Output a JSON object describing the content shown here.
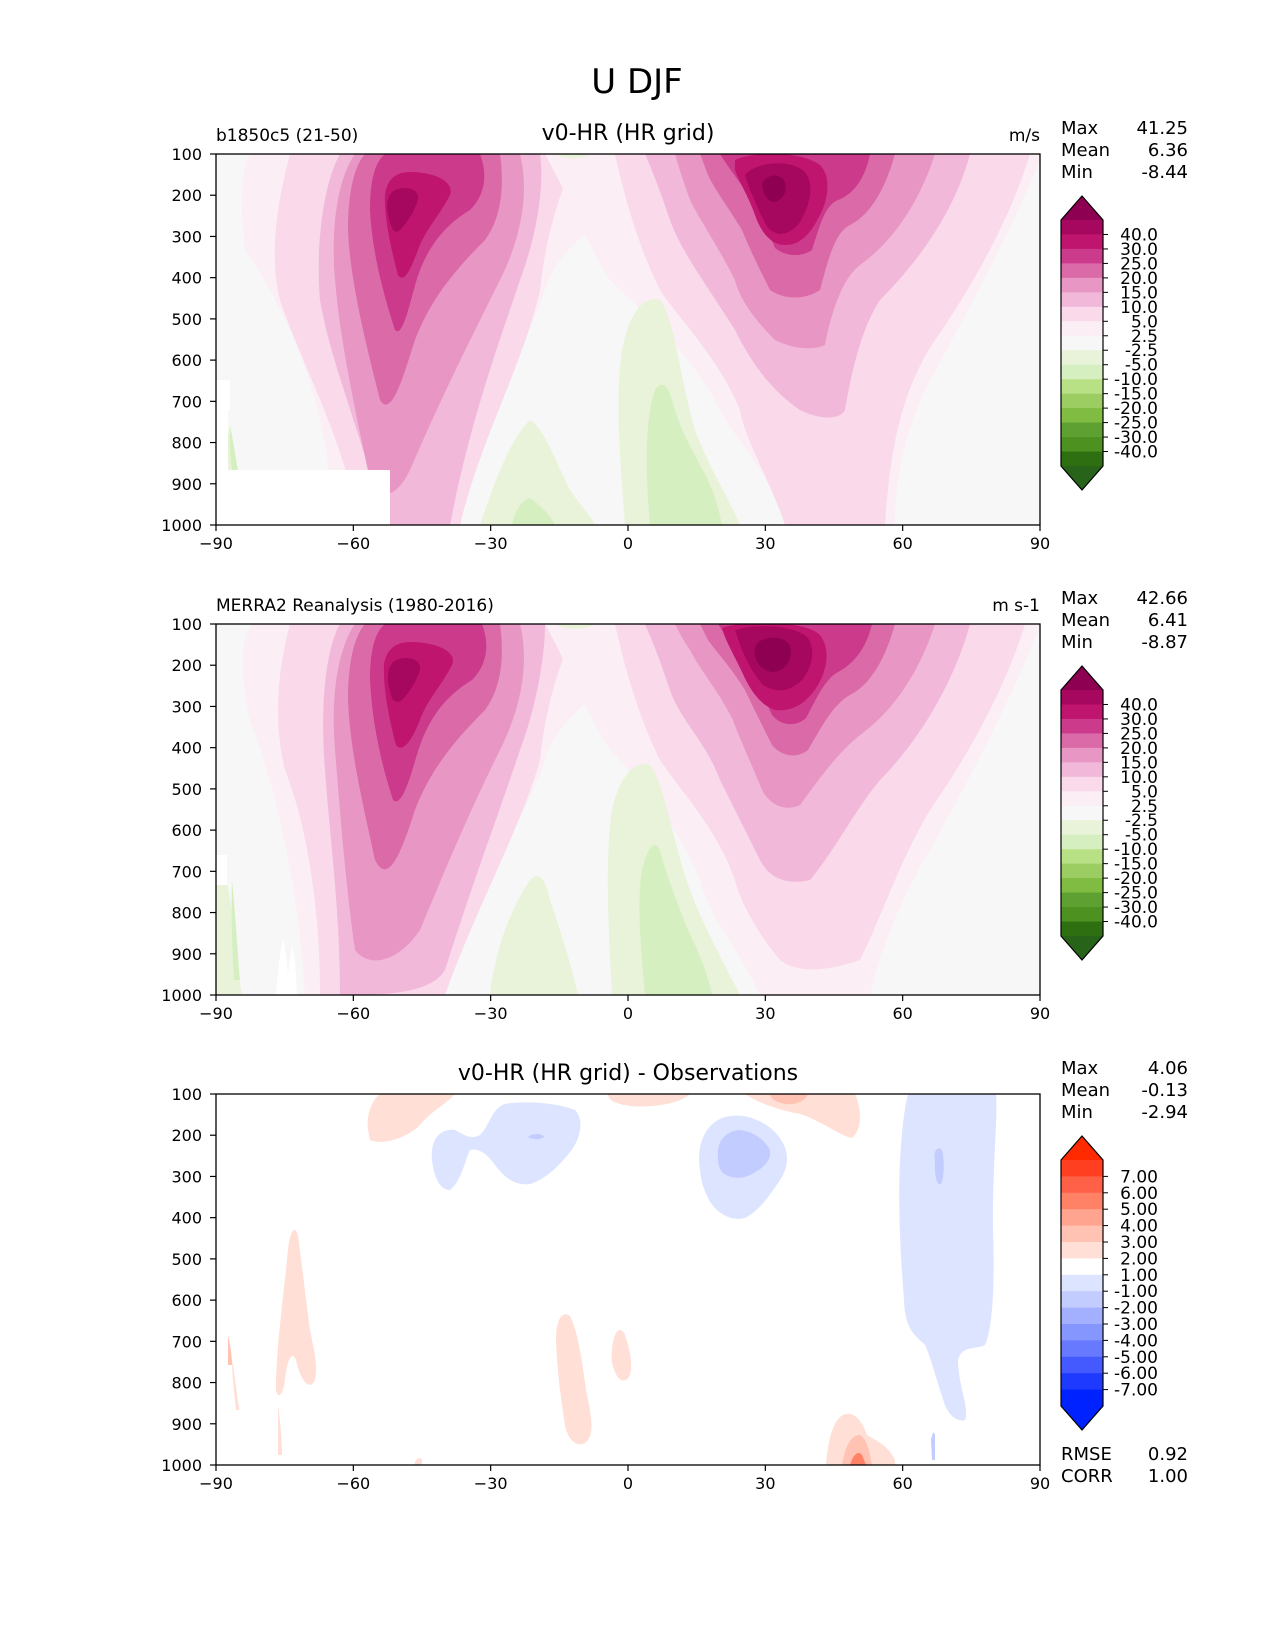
{
  "figure_title": "U DJF",
  "chart_data": [
    {
      "type": "contour",
      "panel": "test",
      "title": "v0-HR (HR grid)",
      "left_label": "b1850c5 (21-50)",
      "units": "m/s",
      "stats": {
        "max_label": "Max",
        "max": "41.25",
        "mean_label": "Mean",
        "mean": "6.36",
        "min_label": "Min",
        "min": "-8.44"
      },
      "x_ticks": [
        "−90",
        "−60",
        "−30",
        "0",
        "30",
        "60",
        "90"
      ],
      "y_ticks": [
        "100",
        "200",
        "300",
        "400",
        "500",
        "600",
        "700",
        "800",
        "900",
        "1000"
      ],
      "xlim": [
        -90,
        90
      ],
      "ylim": [
        100,
        1000
      ],
      "levels": [
        "40.0",
        "30.0",
        "25.0",
        "20.0",
        "15.0",
        "10.0",
        "5.0",
        "2.5",
        "-2.5",
        "-5.0",
        "-10.0",
        "-15.0",
        "-20.0",
        "-25.0",
        "-30.0",
        "-40.0"
      ],
      "colors": [
        "#8e0152",
        "#a7085f",
        "#c0156f",
        "#cc3a8b",
        "#db6ba8",
        "#e896c3",
        "#f1b8da",
        "#f9d9ea",
        "#fbeef4",
        "#f7f7f7",
        "#e8f3da",
        "#d6efc0",
        "#b8e186",
        "#9ccd63",
        "#7fbc41",
        "#5fa032",
        "#4d9221",
        "#2e7011",
        "#276419"
      ]
    },
    {
      "type": "contour",
      "panel": "reference",
      "title": "",
      "left_label": "MERRA2 Reanalysis (1980-2016)",
      "units": "m s-1",
      "stats": {
        "max_label": "Max",
        "max": "42.66",
        "mean_label": "Mean",
        "mean": "6.41",
        "min_label": "Min",
        "min": "-8.87"
      },
      "x_ticks": [
        "−90",
        "−60",
        "−30",
        "0",
        "30",
        "60",
        "90"
      ],
      "y_ticks": [
        "100",
        "200",
        "300",
        "400",
        "500",
        "600",
        "700",
        "800",
        "900",
        "1000"
      ],
      "xlim": [
        -90,
        90
      ],
      "ylim": [
        100,
        1000
      ],
      "levels": [
        "40.0",
        "30.0",
        "25.0",
        "20.0",
        "15.0",
        "10.0",
        "5.0",
        "2.5",
        "-2.5",
        "-5.0",
        "-10.0",
        "-15.0",
        "-20.0",
        "-25.0",
        "-30.0",
        "-40.0"
      ],
      "colors": [
        "#8e0152",
        "#a7085f",
        "#c0156f",
        "#cc3a8b",
        "#db6ba8",
        "#e896c3",
        "#f1b8da",
        "#f9d9ea",
        "#fbeef4",
        "#f7f7f7",
        "#e8f3da",
        "#d6efc0",
        "#b8e186",
        "#9ccd63",
        "#7fbc41",
        "#5fa032",
        "#4d9221",
        "#2e7011",
        "#276419"
      ]
    },
    {
      "type": "contour",
      "panel": "difference",
      "title": "v0-HR (HR grid) - Observations",
      "left_label": "",
      "units": "",
      "stats": {
        "max_label": "Max",
        "max": "4.06",
        "mean_label": "Mean",
        "mean": "-0.13",
        "min_label": "Min",
        "min": "-2.94"
      },
      "extra_stats": {
        "rmse_label": "RMSE",
        "rmse": "0.92",
        "corr_label": "CORR",
        "corr": "1.00"
      },
      "x_ticks": [
        "−90",
        "−60",
        "−30",
        "0",
        "30",
        "60",
        "90"
      ],
      "y_ticks": [
        "100",
        "200",
        "300",
        "400",
        "500",
        "600",
        "700",
        "800",
        "900",
        "1000"
      ],
      "xlim": [
        -90,
        90
      ],
      "ylim": [
        100,
        1000
      ],
      "levels": [
        "7.00",
        "6.00",
        "5.00",
        "4.00",
        "3.00",
        "2.00",
        "1.00",
        "-1.00",
        "-2.00",
        "-3.00",
        "-4.00",
        "-5.00",
        "-6.00",
        "-7.00"
      ],
      "colors": [
        "#ff2a00",
        "#ff3f1f",
        "#ff6148",
        "#ff8266",
        "#ffa48f",
        "#ffc2b3",
        "#ffdfd6",
        "#ffffff",
        "#dde4ff",
        "#c2ccff",
        "#a2b0ff",
        "#8597ff",
        "#6679ff",
        "#445aff",
        "#1f3aff",
        "#0022ff"
      ]
    }
  ]
}
